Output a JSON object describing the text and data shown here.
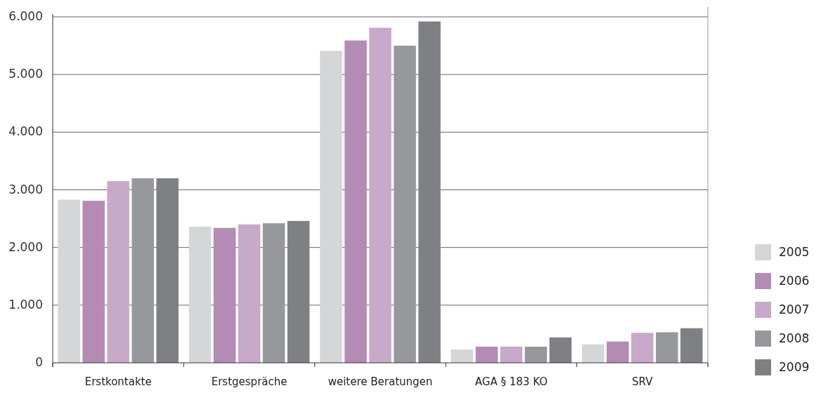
{
  "chart_data": {
    "type": "bar",
    "categories": [
      "Erstkontakte",
      "Erstgespräche",
      "weitere Beratungen",
      "AGA § 183 KO",
      "SRV"
    ],
    "series": [
      {
        "name": "2005",
        "color": "#d5d6d8",
        "values": [
          2830,
          2360,
          5410,
          230,
          320
        ]
      },
      {
        "name": "2006",
        "color": "#b38bb5",
        "values": [
          2810,
          2340,
          5590,
          280,
          370
        ]
      },
      {
        "name": "2007",
        "color": "#c8a9c9",
        "values": [
          3150,
          2400,
          5810,
          280,
          520
        ]
      },
      {
        "name": "2008",
        "color": "#97989c",
        "values": [
          3200,
          2420,
          5500,
          280,
          530
        ]
      },
      {
        "name": "2009",
        "color": "#7f8084",
        "values": [
          3200,
          2460,
          5920,
          440,
          600
        ]
      }
    ],
    "ylim": [
      0,
      6000
    ],
    "yticks": [
      {
        "value": 0,
        "label": "0"
      },
      {
        "value": 1000,
        "label": "1.000"
      },
      {
        "value": 2000,
        "label": "2.000"
      },
      {
        "value": 3000,
        "label": "3.000"
      },
      {
        "value": 4000,
        "label": "4.000"
      },
      {
        "value": 5000,
        "label": "5.000"
      },
      {
        "value": 6000,
        "label": "6.000"
      }
    ],
    "grid": "y",
    "legend": "right"
  }
}
